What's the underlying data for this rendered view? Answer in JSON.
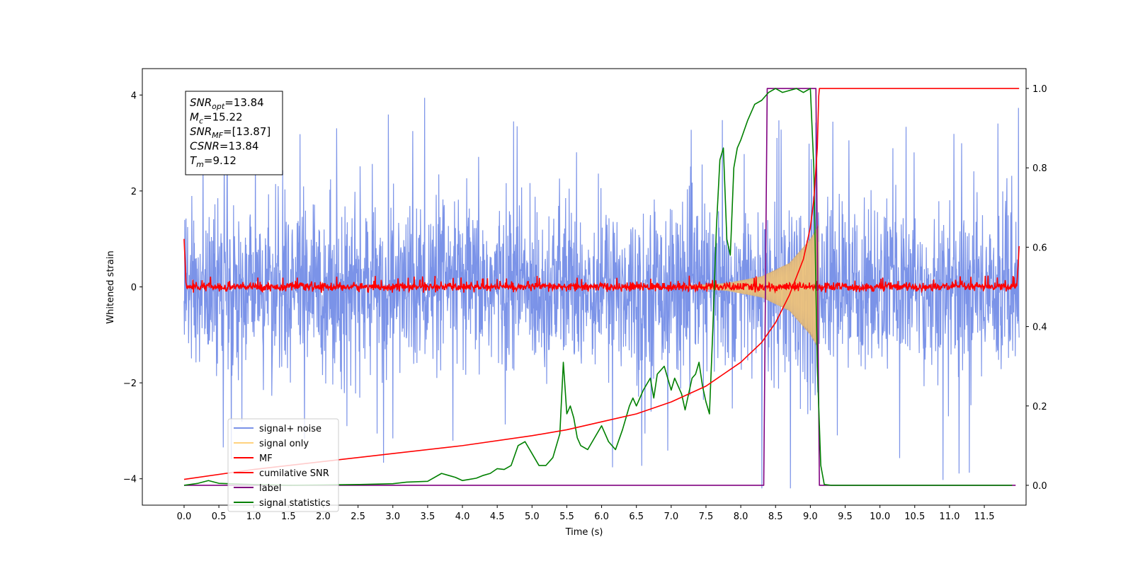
{
  "chart_data": {
    "type": "line",
    "xlabel": "Time (s)",
    "ylabel": "Whitened strain",
    "xlim": [
      -0.6,
      12.1
    ],
    "ylim": [
      -4.55,
      4.55
    ],
    "ylim_right": [
      -0.05,
      1.05
    ],
    "x_ticks": [
      "0.0",
      "0.5",
      "1.0",
      "1.5",
      "2.0",
      "2.5",
      "3.0",
      "3.5",
      "4.0",
      "4.5",
      "5.0",
      "5.5",
      "6.0",
      "6.5",
      "7.0",
      "7.5",
      "8.0",
      "8.5",
      "9.0",
      "9.5",
      "10.0",
      "10.5",
      "11.0",
      "11.5"
    ],
    "y_ticks_left": [
      "4",
      "2",
      "0",
      "−2",
      "−4"
    ],
    "y_ticks_right": [
      "1.0",
      "0.8",
      "0.6",
      "0.4",
      "0.2",
      "0.0"
    ],
    "grid": false,
    "legend_position": "lower-left",
    "info_box": [
      {
        "sym": "SNR",
        "sub": "opt",
        "val": "=13.84"
      },
      {
        "sym": "M",
        "sub": "c",
        "val": "=15.22"
      },
      {
        "sym": "SNR",
        "sub": "MF",
        "val": "=[13.87]"
      },
      {
        "sym": "CSNR",
        "sub": "",
        "val": "=13.84"
      },
      {
        "sym": "T",
        "sub": "m",
        "val": "=9.12"
      }
    ],
    "series": [
      {
        "name": "signal+ noise",
        "color": "#7b93e8",
        "axis": "left",
        "style": "noise band",
        "x_range": [
          0.0,
          12.0
        ],
        "typical_range": [
          -1.9,
          1.9
        ],
        "peak_max": 4.15,
        "peak_min": -4.2
      },
      {
        "name": "signal only",
        "color": "#ffd27f",
        "axis": "left",
        "style": "chirp",
        "x_range": [
          7.2,
          9.12
        ],
        "envelope": {
          "x": [
            7.2,
            7.8,
            8.3,
            8.7,
            9.0,
            9.12
          ],
          "amp": [
            0.02,
            0.08,
            0.22,
            0.5,
            1.0,
            1.3
          ]
        }
      },
      {
        "name": "MF",
        "color": "#ff0000",
        "axis": "left",
        "style": "noise band",
        "x_range": [
          0.0,
          12.0
        ],
        "typical_range": [
          -0.08,
          0.08
        ],
        "peak_max": 0.25,
        "edge_start": 1.0,
        "edge_end": 0.85
      },
      {
        "name": "cumilative SNR",
        "color": "#ff0000",
        "axis": "right",
        "x": [
          0.0,
          1.0,
          2.0,
          3.0,
          4.0,
          5.0,
          5.5,
          6.0,
          6.5,
          7.0,
          7.5,
          8.0,
          8.3,
          8.5,
          8.7,
          8.9,
          9.0,
          9.05,
          9.1,
          9.12,
          9.13,
          12.0
        ],
        "y": [
          0.015,
          0.04,
          0.06,
          0.08,
          0.1,
          0.125,
          0.14,
          0.16,
          0.18,
          0.21,
          0.25,
          0.31,
          0.36,
          0.41,
          0.48,
          0.57,
          0.65,
          0.72,
          0.85,
          0.98,
          1.0,
          1.0
        ]
      },
      {
        "name": "label",
        "color": "#800080",
        "axis": "right",
        "x": [
          0.0,
          8.33,
          8.38,
          9.08,
          9.13,
          11.95
        ],
        "y": [
          0.0,
          0.0,
          1.0,
          1.0,
          0.0,
          0.0
        ]
      },
      {
        "name": "signal statistics",
        "color": "#008000",
        "axis": "right",
        "x": [
          0.0,
          0.2,
          0.35,
          0.5,
          1.0,
          1.5,
          2.0,
          2.5,
          3.0,
          3.2,
          3.5,
          3.7,
          3.8,
          3.9,
          4.0,
          4.1,
          4.2,
          4.3,
          4.4,
          4.5,
          4.6,
          4.7,
          4.8,
          4.9,
          5.0,
          5.1,
          5.2,
          5.3,
          5.4,
          5.45,
          5.5,
          5.55,
          5.6,
          5.65,
          5.7,
          5.8,
          5.9,
          6.0,
          6.1,
          6.2,
          6.3,
          6.4,
          6.45,
          6.5,
          6.6,
          6.7,
          6.75,
          6.8,
          6.9,
          7.0,
          7.05,
          7.1,
          7.15,
          7.2,
          7.3,
          7.35,
          7.4,
          7.45,
          7.5,
          7.55,
          7.6,
          7.65,
          7.7,
          7.75,
          7.8,
          7.85,
          7.9,
          7.95,
          8.0,
          8.1,
          8.2,
          8.3,
          8.4,
          8.5,
          8.6,
          8.7,
          8.8,
          8.9,
          9.0,
          9.05,
          9.1,
          9.15,
          9.2,
          9.3,
          11.9
        ],
        "y": [
          0.0,
          0.005,
          0.012,
          0.005,
          0.002,
          0.0,
          0.001,
          0.002,
          0.004,
          0.008,
          0.01,
          0.03,
          0.025,
          0.02,
          0.012,
          0.015,
          0.018,
          0.025,
          0.03,
          0.042,
          0.04,
          0.05,
          0.1,
          0.11,
          0.08,
          0.05,
          0.05,
          0.07,
          0.13,
          0.31,
          0.18,
          0.2,
          0.17,
          0.12,
          0.1,
          0.09,
          0.12,
          0.15,
          0.11,
          0.09,
          0.14,
          0.2,
          0.22,
          0.2,
          0.24,
          0.27,
          0.22,
          0.28,
          0.3,
          0.24,
          0.27,
          0.25,
          0.23,
          0.19,
          0.27,
          0.28,
          0.31,
          0.25,
          0.21,
          0.18,
          0.4,
          0.65,
          0.82,
          0.85,
          0.62,
          0.58,
          0.8,
          0.85,
          0.87,
          0.92,
          0.96,
          0.97,
          0.99,
          1.0,
          0.99,
          0.995,
          1.0,
          0.99,
          1.0,
          0.8,
          0.3,
          0.05,
          0.002,
          0.0,
          0.0
        ]
      }
    ]
  }
}
